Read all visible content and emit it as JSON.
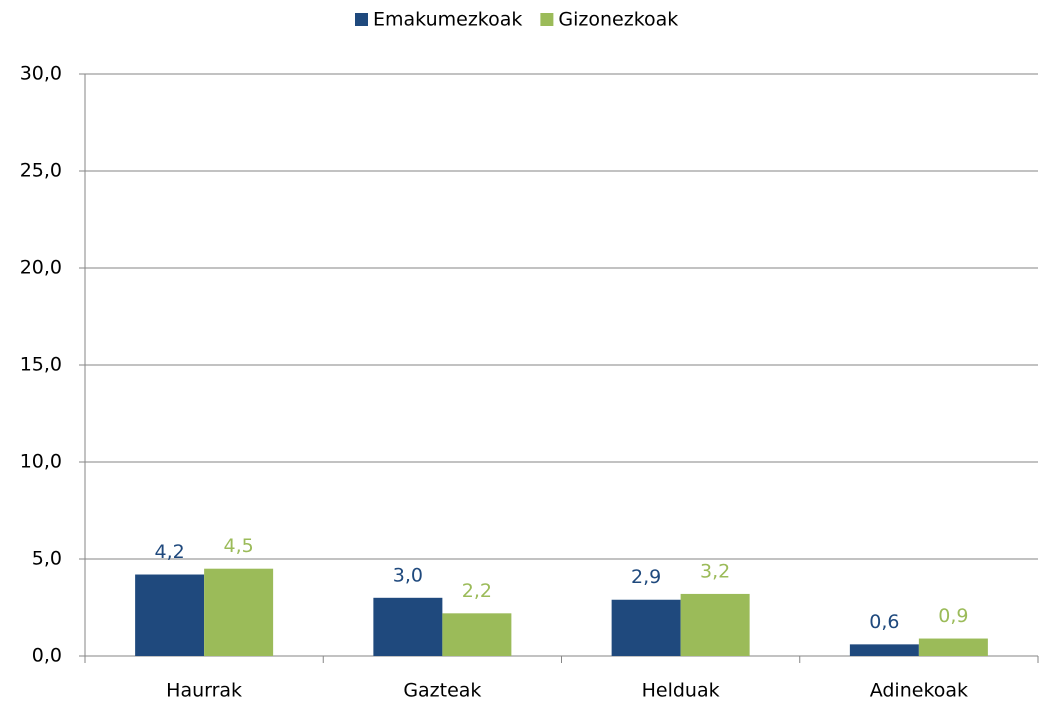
{
  "chart_data": {
    "type": "bar",
    "categories": [
      "Haurrak",
      "Gazteak",
      "Helduak",
      "Adinekoak"
    ],
    "series": [
      {
        "name": "Emakumezkoak",
        "color": "#1f497d",
        "values": [
          4.2,
          3.0,
          2.9,
          0.6
        ],
        "value_labels": [
          "4,2",
          "3,0",
          "2,9",
          "0,6"
        ]
      },
      {
        "name": "Gizonezkoak",
        "color": "#9bbb59",
        "values": [
          4.5,
          2.2,
          3.2,
          0.9
        ],
        "value_labels": [
          "4,5",
          "2,2",
          "3,2",
          "0,9"
        ]
      }
    ],
    "ylim": [
      0,
      30
    ],
    "yticks": [
      {
        "value": 0,
        "label": "0,0"
      },
      {
        "value": 5,
        "label": "5,0"
      },
      {
        "value": 10,
        "label": "10,0"
      },
      {
        "value": 15,
        "label": "15,0"
      },
      {
        "value": 20,
        "label": "20,0"
      },
      {
        "value": 25,
        "label": "25,0"
      },
      {
        "value": 30,
        "label": "30,0"
      }
    ],
    "grid": true,
    "legend": "top"
  }
}
